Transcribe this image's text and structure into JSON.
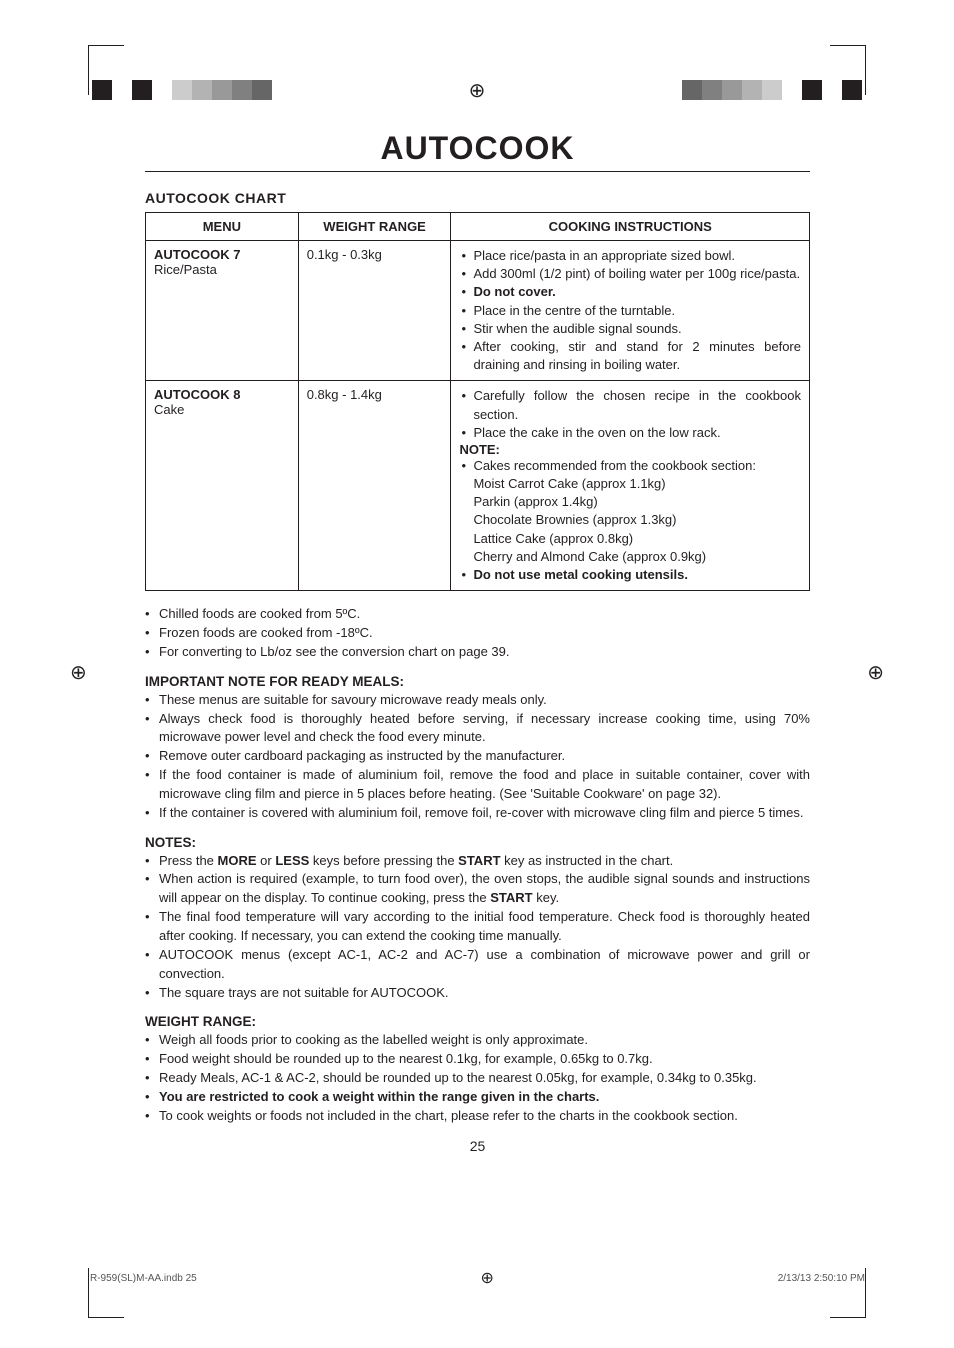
{
  "title": "AUTOCOOK",
  "chart_heading": "AUTOCOOK CHART",
  "table": {
    "headers": [
      "MENU",
      "WEIGHT RANGE",
      "COOKING INSTRUCTIONS"
    ],
    "rows": [
      {
        "menu_bold": "AUTOCOOK 7",
        "menu_rest": "Rice/Pasta",
        "weight": "0.1kg - 0.3kg",
        "instructions": [
          "Place rice/pasta in an appropriate sized bowl.",
          "Add 300ml (1/2 pint) of boiling water per 100g rice/pasta.",
          "<b>Do not cover.</b>",
          "Place in the centre of the turntable.",
          "Stir when the audible signal sounds.",
          "After cooking, stir and stand for 2 minutes before draining and rinsing in boiling water."
        ]
      },
      {
        "menu_bold": "AUTOCOOK 8",
        "menu_rest": "Cake",
        "weight": "0.8kg - 1.4kg",
        "instructions_pre": [
          "Carefully follow the chosen recipe in the cookbook section.",
          "Place the cake in the oven on the low rack."
        ],
        "note_label": "NOTE:",
        "instructions_post": [
          "Cakes recommended from the cookbook section:<br>Moist Carrot Cake (approx 1.1kg)<br>Parkin (approx 1.4kg)<br>Chocolate Brownies (approx 1.3kg)<br>Lattice Cake (approx 0.8kg)<br>Cherry and Almond Cake (approx 0.9kg)",
          "<b>Do not use metal cooking utensils.</b>"
        ]
      }
    ]
  },
  "pre_notes": [
    "Chilled foods are cooked from 5ºC.",
    "Frozen foods are cooked from -18ºC.",
    "For converting to Lb/oz see the conversion chart on page 39."
  ],
  "ready_meals_head": "IMPORTANT NOTE FOR READY MEALS:",
  "ready_meals": [
    "These menus are suitable for savoury microwave ready meals only.",
    "Always check food is thoroughly heated before serving, if necessary increase cooking time, using 70% microwave power level and check the food every minute.",
    "Remove outer cardboard packaging as instructed by the manufacturer.",
    "If the food container is made of aluminium foil, remove the food and place in suitable container, cover with microwave cling film and pierce in 5 places before heating. (See 'Suitable Cookware' on page 32).",
    "If the container is covered with aluminium foil, remove foil, re-cover with microwave cling film and pierce 5 times."
  ],
  "notes_head": "NOTES:",
  "notes": [
    "Press the <b>MORE</b> or <b>LESS</b> keys before pressing the <b>START</b> key as instructed in the chart.",
    "When action is required (example, to turn food over), the oven stops, the audible signal sounds and instructions will appear on the display. To continue cooking, press the <b>START</b> key.",
    "The final food temperature will vary according to the initial food temperature. Check food is thoroughly heated after cooking. If necessary, you can extend the cooking time manually.",
    "AUTOCOOK menus (except AC-1, AC-2 and AC-7) use a combination of microwave power and grill or convection.",
    "The square trays are not suitable for AUTOCOOK."
  ],
  "weight_head": "WEIGHT RANGE:",
  "weight": [
    "Weigh all foods prior to cooking as the labelled weight is only approximate.",
    "Food weight should be rounded up to the nearest 0.1kg, for example, 0.65kg to 0.7kg.",
    "Ready Meals, AC-1 & AC-2, should be rounded up to the nearest 0.05kg, for example, 0.34kg to 0.35kg.",
    "<b>You are restricted to cook a weight within the range given in the charts.</b>",
    "To cook weights or foods not included in the chart, please refer to the charts in the cookbook section."
  ],
  "pagenum": "25",
  "footer_left": "R-959(SL)M-AA.indb   25",
  "footer_right": "2/13/13   2:50:10 PM",
  "crop_colors_left": [
    "#231f20",
    "#ffffff",
    "#231f20",
    "#ffffff",
    "#cccccc",
    "#b3b3b3",
    "#999999",
    "#808080",
    "#666666",
    "#ffffff"
  ],
  "crop_colors_right": [
    "#ffffff",
    "#666666",
    "#808080",
    "#999999",
    "#b3b3b3",
    "#cccccc",
    "#ffffff",
    "#231f20",
    "#ffffff",
    "#231f20"
  ]
}
